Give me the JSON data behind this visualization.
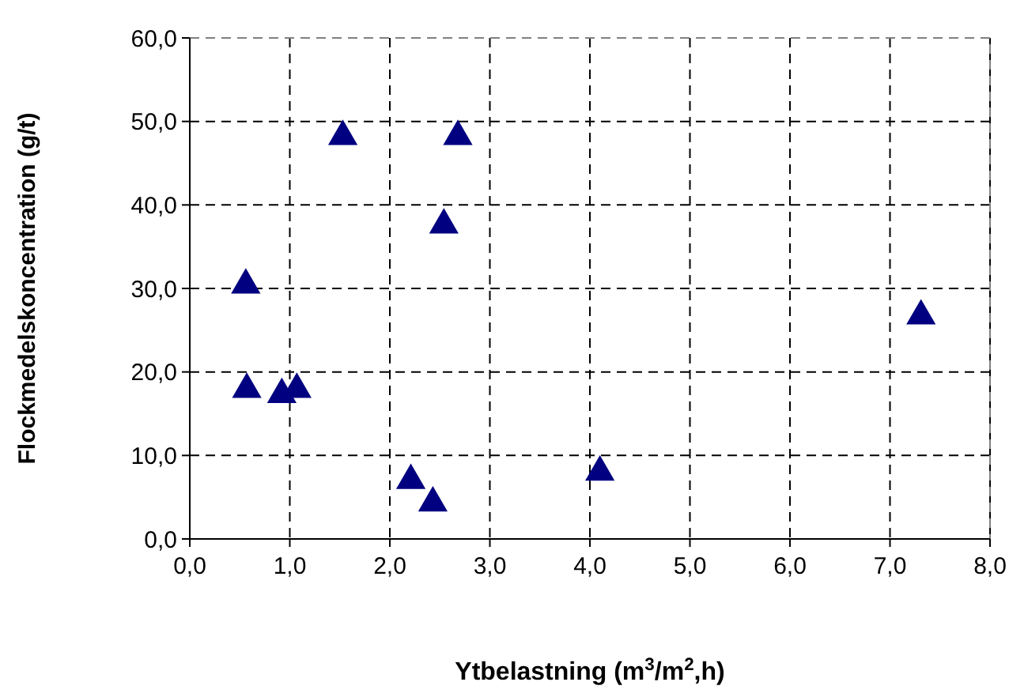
{
  "chart_data": {
    "type": "scatter",
    "xlabel": "Ytbelastning (m$^{3}$/m$^{2}$,h)",
    "ylabel": "Flockmedelskoncentration (g/t)",
    "x": [
      1.53,
      2.68,
      2.54,
      0.56,
      7.31,
      0.57,
      0.92,
      1.07,
      2.21,
      2.43,
      4.1
    ],
    "series": [
      {
        "color": "#000080",
        "values": [
          48.2,
          48.2,
          37.6,
          30.4,
          26.7,
          17.9,
          17.3,
          17.9,
          7.0,
          4.3,
          8.0
        ]
      }
    ],
    "xlim": [
      0,
      8
    ],
    "ylim": [
      0,
      60
    ],
    "xticks": [
      {
        "value": 0,
        "label": "0,0"
      },
      {
        "value": 1,
        "label": "1,0"
      },
      {
        "value": 2,
        "label": "2,0"
      },
      {
        "value": 3,
        "label": "3,0"
      },
      {
        "value": 4,
        "label": "4,0"
      },
      {
        "value": 5,
        "label": "5,0"
      },
      {
        "value": 6,
        "label": "6,0"
      },
      {
        "value": 7,
        "label": "7,0"
      },
      {
        "value": 8,
        "label": "8,0"
      }
    ],
    "yticks": [
      {
        "value": 0,
        "label": "0,0"
      },
      {
        "value": 10,
        "label": "10,0"
      },
      {
        "value": 20,
        "label": "20,0"
      },
      {
        "value": 30,
        "label": "30,0"
      },
      {
        "value": 40,
        "label": "40,0"
      },
      {
        "value": 50,
        "label": "50,0"
      },
      {
        "value": 60,
        "label": "60,0"
      }
    ],
    "grid": true,
    "marker": "triangle"
  }
}
